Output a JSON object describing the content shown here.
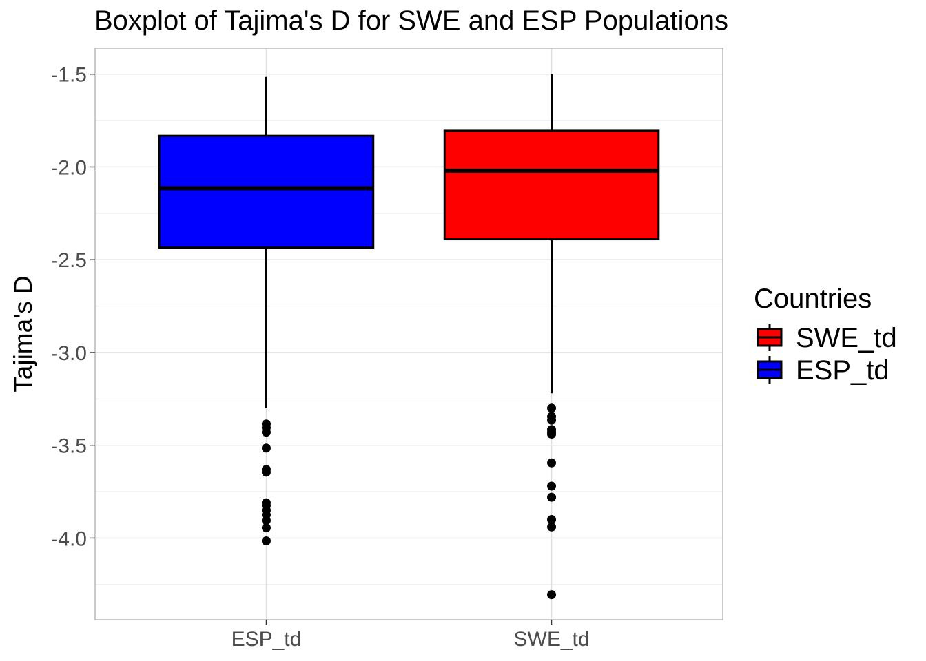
{
  "chart_data": {
    "type": "boxplot",
    "title": "Boxplot of Tajima's D for SWE and ESP Populations",
    "xlabel": "",
    "ylabel": "Tajima's D",
    "ylim": [
      -4.44,
      -1.36
    ],
    "yticks": [
      -1.5,
      -2.0,
      -2.5,
      -3.0,
      -3.5,
      -4.0
    ],
    "ytick_labels": [
      "-1.5",
      "-2.0",
      "-2.5",
      "-3.0",
      "-3.5",
      "-4.0"
    ],
    "grid": true,
    "categories": [
      "ESP_td",
      "SWE_td"
    ],
    "boxes": [
      {
        "category": "ESP_td",
        "fill": "#0000ff",
        "q1": -2.435,
        "median": -2.115,
        "q3": -1.832,
        "whisker_low": -3.3,
        "whisker_high": -1.515,
        "outliers": [
          -3.385,
          -3.405,
          -3.43,
          -3.515,
          -3.63,
          -3.645,
          -3.81,
          -3.825,
          -3.85,
          -3.875,
          -3.905,
          -3.945,
          -4.015
        ]
      },
      {
        "category": "SWE_td",
        "fill": "#ff0000",
        "q1": -2.39,
        "median": -2.02,
        "q3": -1.805,
        "whisker_low": -3.22,
        "whisker_high": -1.5,
        "outliers": [
          -3.3,
          -3.345,
          -3.365,
          -3.415,
          -3.43,
          -3.44,
          -3.595,
          -3.72,
          -3.78,
          -3.9,
          -3.94,
          -4.305
        ]
      }
    ],
    "legend": {
      "title": "Countries",
      "position": "right",
      "items": [
        {
          "label": "SWE_td",
          "color": "#ff0000"
        },
        {
          "label": "ESP_td",
          "color": "#0000ff"
        }
      ]
    }
  }
}
